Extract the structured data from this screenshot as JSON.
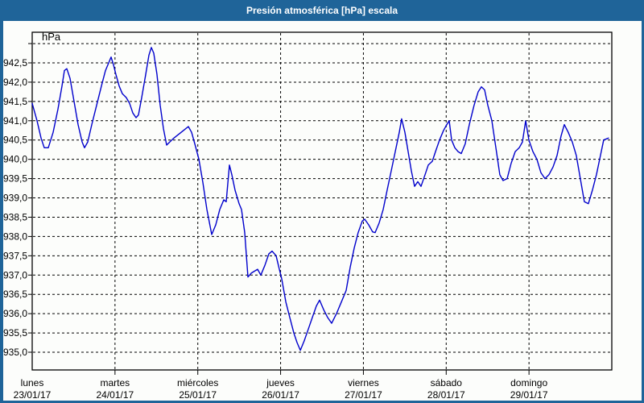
{
  "window": {
    "title": "Presión atmosférica [hPa] escala",
    "colors": {
      "titlebar": "#1f6499",
      "frame_border": "#1f6499",
      "plot_background": "#fcfdfb",
      "grid": "#000000",
      "axis": "#000000",
      "line": "#0000cc",
      "text": "#000000"
    }
  },
  "chart_data": {
    "type": "line",
    "title": "Presión atmosférica [hPa] escala",
    "ylabel": "hPa",
    "xlabel": "",
    "ylim": [
      935.0,
      943.0
    ],
    "y_tick_step": 0.5,
    "y_tick_labels": [
      "942,5",
      "942,0",
      "941,5",
      "941,0",
      "940,5",
      "940,0",
      "939,5",
      "939,0",
      "938,5",
      "938,0",
      "937,5",
      "937,0",
      "936,5",
      "936,0",
      "935,5",
      "935,0"
    ],
    "grid": "dashed",
    "legend": "none",
    "x_days": [
      {
        "name": "lunes",
        "date": "23/01/17"
      },
      {
        "name": "martes",
        "date": "24/01/17"
      },
      {
        "name": "miércoles",
        "date": "25/01/17"
      },
      {
        "name": "jueves",
        "date": "26/01/17"
      },
      {
        "name": "viernes",
        "date": "27/01/17"
      },
      {
        "name": "sábado",
        "date": "28/01/17"
      },
      {
        "name": "domingo",
        "date": "29/01/17"
      }
    ],
    "series": [
      {
        "name": "Presión atmosférica",
        "unit": "hPa",
        "color": "#0000cc",
        "points": [
          [
            0.0,
            941.45
          ],
          [
            0.058,
            941.0
          ],
          [
            0.107,
            940.55
          ],
          [
            0.146,
            940.3
          ],
          [
            0.194,
            940.3
          ],
          [
            0.253,
            940.7
          ],
          [
            0.311,
            941.3
          ],
          [
            0.36,
            941.9
          ],
          [
            0.389,
            942.3
          ],
          [
            0.418,
            942.35
          ],
          [
            0.457,
            942.1
          ],
          [
            0.506,
            941.5
          ],
          [
            0.554,
            940.9
          ],
          [
            0.603,
            940.45
          ],
          [
            0.632,
            940.3
          ],
          [
            0.671,
            940.45
          ],
          [
            0.719,
            940.9
          ],
          [
            0.778,
            941.4
          ],
          [
            0.836,
            941.9
          ],
          [
            0.885,
            942.3
          ],
          [
            0.924,
            942.5
          ],
          [
            0.953,
            942.65
          ],
          [
            0.982,
            942.45
          ],
          [
            1.011,
            942.2
          ],
          [
            1.05,
            941.9
          ],
          [
            1.089,
            941.7
          ],
          [
            1.137,
            941.6
          ],
          [
            1.176,
            941.45
          ],
          [
            1.215,
            941.2
          ],
          [
            1.254,
            941.08
          ],
          [
            1.283,
            941.15
          ],
          [
            1.322,
            941.6
          ],
          [
            1.371,
            942.2
          ],
          [
            1.41,
            942.7
          ],
          [
            1.439,
            942.9
          ],
          [
            1.468,
            942.75
          ],
          [
            1.507,
            942.2
          ],
          [
            1.546,
            941.4
          ],
          [
            1.585,
            940.8
          ],
          [
            1.624,
            940.37
          ],
          [
            1.662,
            940.45
          ],
          [
            1.711,
            940.55
          ],
          [
            1.769,
            940.65
          ],
          [
            1.828,
            940.75
          ],
          [
            1.886,
            940.85
          ],
          [
            1.925,
            940.7
          ],
          [
            1.964,
            940.4
          ],
          [
            2.013,
            940.0
          ],
          [
            2.061,
            939.4
          ],
          [
            2.11,
            938.7
          ],
          [
            2.168,
            938.05
          ],
          [
            2.217,
            938.3
          ],
          [
            2.265,
            938.7
          ],
          [
            2.314,
            938.95
          ],
          [
            2.343,
            938.9
          ],
          [
            2.382,
            939.85
          ],
          [
            2.411,
            939.6
          ],
          [
            2.45,
            939.2
          ],
          [
            2.499,
            938.85
          ],
          [
            2.528,
            938.7
          ],
          [
            2.567,
            938.1
          ],
          [
            2.606,
            936.95
          ],
          [
            2.645,
            937.05
          ],
          [
            2.683,
            937.1
          ],
          [
            2.722,
            937.15
          ],
          [
            2.761,
            937.0
          ],
          [
            2.81,
            937.25
          ],
          [
            2.858,
            937.55
          ],
          [
            2.897,
            937.62
          ],
          [
            2.946,
            937.5
          ],
          [
            2.985,
            937.15
          ],
          [
            3.014,
            936.9
          ],
          [
            3.063,
            936.3
          ],
          [
            3.111,
            935.9
          ],
          [
            3.16,
            935.5
          ],
          [
            3.199,
            935.25
          ],
          [
            3.238,
            935.05
          ],
          [
            3.286,
            935.3
          ],
          [
            3.335,
            935.6
          ],
          [
            3.383,
            935.9
          ],
          [
            3.432,
            936.2
          ],
          [
            3.471,
            936.35
          ],
          [
            3.52,
            936.1
          ],
          [
            3.568,
            935.9
          ],
          [
            3.617,
            935.75
          ],
          [
            3.675,
            936.0
          ],
          [
            3.733,
            936.3
          ],
          [
            3.792,
            936.6
          ],
          [
            3.84,
            937.2
          ],
          [
            3.889,
            937.7
          ],
          [
            3.937,
            938.1
          ],
          [
            3.986,
            938.4
          ],
          [
            4.015,
            938.45
          ],
          [
            4.064,
            938.3
          ],
          [
            4.112,
            938.12
          ],
          [
            4.142,
            938.1
          ],
          [
            4.19,
            938.35
          ],
          [
            4.239,
            938.7
          ],
          [
            4.287,
            939.2
          ],
          [
            4.336,
            939.7
          ],
          [
            4.385,
            940.2
          ],
          [
            4.433,
            940.7
          ],
          [
            4.462,
            941.05
          ],
          [
            4.501,
            940.7
          ],
          [
            4.54,
            940.2
          ],
          [
            4.579,
            939.7
          ],
          [
            4.618,
            939.3
          ],
          [
            4.657,
            939.42
          ],
          [
            4.696,
            939.3
          ],
          [
            4.744,
            939.6
          ],
          [
            4.783,
            939.85
          ],
          [
            4.832,
            939.95
          ],
          [
            4.871,
            940.2
          ],
          [
            4.919,
            940.5
          ],
          [
            4.968,
            940.75
          ],
          [
            5.007,
            940.9
          ],
          [
            5.036,
            941.0
          ],
          [
            5.065,
            940.5
          ],
          [
            5.104,
            940.3
          ],
          [
            5.143,
            940.2
          ],
          [
            5.182,
            940.15
          ],
          [
            5.23,
            940.4
          ],
          [
            5.279,
            940.9
          ],
          [
            5.337,
            941.4
          ],
          [
            5.386,
            941.75
          ],
          [
            5.425,
            941.88
          ],
          [
            5.464,
            941.8
          ],
          [
            5.503,
            941.4
          ],
          [
            5.551,
            941.0
          ],
          [
            5.6,
            940.3
          ],
          [
            5.648,
            939.6
          ],
          [
            5.687,
            939.45
          ],
          [
            5.736,
            939.5
          ],
          [
            5.785,
            939.9
          ],
          [
            5.833,
            940.2
          ],
          [
            5.882,
            940.3
          ],
          [
            5.921,
            940.45
          ],
          [
            5.96,
            941.0
          ],
          [
            5.999,
            940.5
          ],
          [
            6.047,
            940.2
          ],
          [
            6.096,
            940.0
          ],
          [
            6.144,
            939.65
          ],
          [
            6.193,
            939.5
          ],
          [
            6.241,
            939.6
          ],
          [
            6.29,
            939.8
          ],
          [
            6.339,
            940.1
          ],
          [
            6.387,
            940.6
          ],
          [
            6.426,
            940.9
          ],
          [
            6.474,
            940.7
          ],
          [
            6.523,
            940.45
          ],
          [
            6.571,
            940.1
          ],
          [
            6.62,
            939.5
          ],
          [
            6.668,
            938.9
          ],
          [
            6.717,
            938.85
          ],
          [
            6.766,
            939.2
          ],
          [
            6.814,
            939.6
          ],
          [
            6.863,
            940.1
          ],
          [
            6.902,
            940.5
          ],
          [
            6.96,
            940.55
          ]
        ]
      }
    ]
  }
}
